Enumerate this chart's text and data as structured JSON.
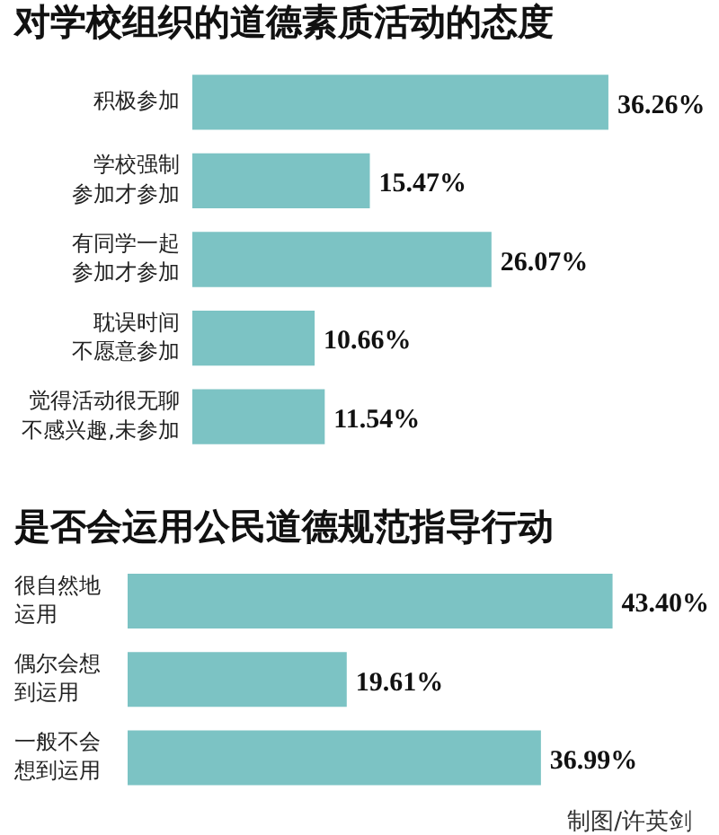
{
  "chart_data": [
    {
      "type": "bar",
      "orientation": "horizontal",
      "title": "对学校组织的道德素质活动的态度",
      "categories": [
        "积极参加",
        "学校强制参加才参加",
        "有同学一起参加才参加",
        "耽误时间不愿意参加",
        "觉得活动很无聊不感兴趣,未参加"
      ],
      "values": [
        36.26,
        15.47,
        26.07,
        10.66,
        11.54
      ],
      "value_labels": [
        "36.26%",
        "15.47%",
        "26.07%",
        "10.66%",
        "11.54%"
      ],
      "color": "#7cc3c4",
      "tick_labels": "y"
    },
    {
      "type": "bar",
      "orientation": "horizontal",
      "title": "是否会运用公民道德规范指导行动",
      "categories": [
        "很自然地运用",
        "偶尔会想到运用",
        "一般不会想到运用"
      ],
      "values": [
        43.4,
        19.61,
        36.99
      ],
      "value_labels": [
        "43.40%",
        "19.61%",
        "36.99%"
      ],
      "color": "#7cc3c4",
      "tick_labels": "y",
      "annotations": [
        "制图/许英剑"
      ]
    }
  ]
}
